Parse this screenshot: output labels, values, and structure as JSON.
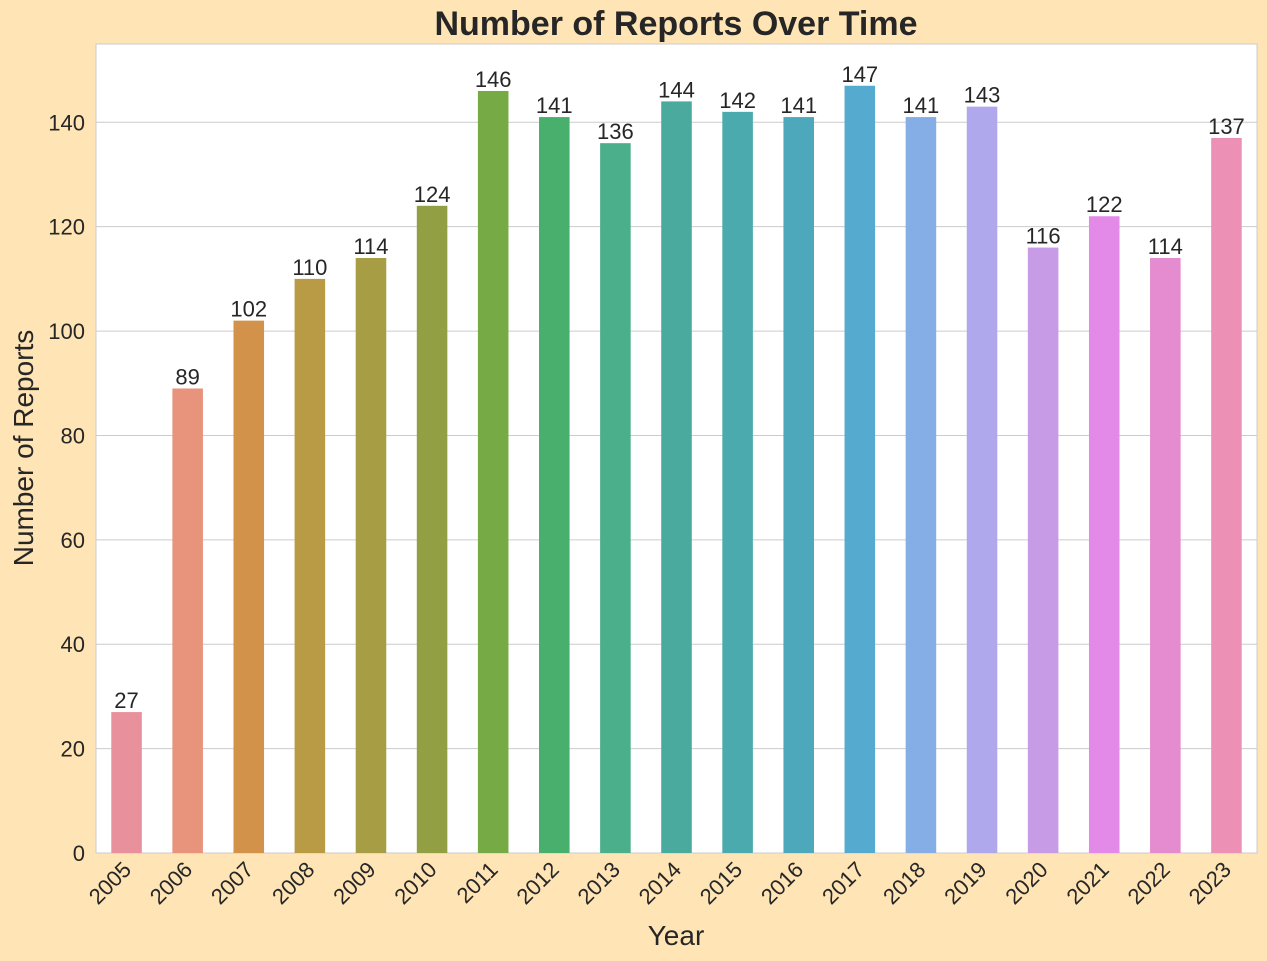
{
  "chart_data": {
    "type": "bar",
    "title": "Number of Reports Over Time",
    "xlabel": "Year",
    "ylabel": "Number of Reports",
    "categories": [
      "2005",
      "2006",
      "2007",
      "2008",
      "2009",
      "2010",
      "2011",
      "2012",
      "2013",
      "2014",
      "2015",
      "2016",
      "2017",
      "2018",
      "2019",
      "2020",
      "2021",
      "2022",
      "2023"
    ],
    "values": [
      27,
      89,
      102,
      110,
      114,
      124,
      146,
      141,
      136,
      144,
      142,
      141,
      147,
      141,
      143,
      116,
      122,
      114,
      137
    ],
    "yticks": [
      0,
      20,
      40,
      60,
      80,
      100,
      120,
      140
    ],
    "ylim": [
      0,
      155
    ],
    "grid": true,
    "colors": [
      "#E8919C",
      "#E8937C",
      "#D3924A",
      "#B99A45",
      "#A79D44",
      "#92A043",
      "#75AA45",
      "#49AF6C",
      "#4CAF8B",
      "#4AAA9D",
      "#4BAAAD",
      "#4DA8BB",
      "#55AACF",
      "#85ADE6",
      "#B0A8EC",
      "#C79BE6",
      "#E38AE8",
      "#E58BCF",
      "#EC90B6"
    ],
    "background": "#FFE4B5",
    "plot_background": "#FFFFFF"
  }
}
